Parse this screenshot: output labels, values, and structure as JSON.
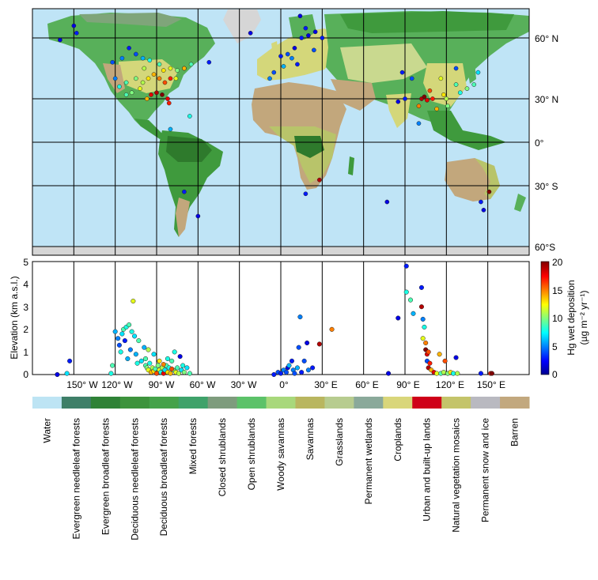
{
  "map": {
    "lat_labels": [
      "60° N",
      "30° N",
      "0°",
      "30° S",
      "60°S"
    ],
    "lon_labels": [
      "150° W",
      "120° W",
      "90° W",
      "60° W",
      "30° W",
      "0°",
      "30° E",
      "60° E",
      "90° E",
      "120° E",
      "150° E"
    ],
    "colors": {
      "ocean": "#bfe4f6",
      "forest_dark": "#2e7a2c",
      "forest": "#3f9a3d",
      "mixed": "#58b05a",
      "shrub": "#7fa57a",
      "savanna": "#b8c46a",
      "grass": "#c9d98f",
      "crop": "#d4d77a",
      "barren": "#c2a77c",
      "snow": "#d6d6d6",
      "urban": "#d4000f"
    }
  },
  "chart_data": {
    "type": "scatter",
    "xlabel": "",
    "ylabel": "Elevation (km a.s.l.)",
    "x_ticks": [
      "150° W",
      "120° W",
      "90° W",
      "60° W",
      "30° W",
      "0°",
      "30° E",
      "60° E",
      "90° E",
      "120° E",
      "150° E"
    ],
    "y_ticks": [
      "0",
      "1",
      "2",
      "3",
      "4",
      "5"
    ],
    "ylim": [
      0,
      5
    ],
    "xlim": [
      -180,
      180
    ],
    "colorbar": {
      "label": "Hg wet deposition",
      "units": "(µg m⁻² yr⁻¹)",
      "ticks": [
        "0",
        "5",
        "10",
        "15",
        "20"
      ],
      "range": [
        0,
        20
      ]
    },
    "points": [
      {
        "lon": -162,
        "elev": 0.0,
        "hg": 2
      },
      {
        "lon": -153,
        "elev": 0.6,
        "hg": 3
      },
      {
        "lon": -155,
        "elev": 0.05,
        "hg": 7
      },
      {
        "lon": -123,
        "elev": 0.05,
        "hg": 8
      },
      {
        "lon": -122,
        "elev": 0.4,
        "hg": 9
      },
      {
        "lon": -120,
        "elev": 1.9,
        "hg": 6
      },
      {
        "lon": -118,
        "elev": 1.6,
        "hg": 5
      },
      {
        "lon": -117,
        "elev": 1.3,
        "hg": 4
      },
      {
        "lon": -116,
        "elev": 1.0,
        "hg": 8
      },
      {
        "lon": -115,
        "elev": 1.8,
        "hg": 7
      },
      {
        "lon": -114,
        "elev": 2.0,
        "hg": 9
      },
      {
        "lon": -113,
        "elev": 1.5,
        "hg": 3
      },
      {
        "lon": -112,
        "elev": 2.1,
        "hg": 8
      },
      {
        "lon": -111,
        "elev": 0.7,
        "hg": 6
      },
      {
        "lon": -110,
        "elev": 2.2,
        "hg": 9
      },
      {
        "lon": -109,
        "elev": 1.1,
        "hg": 5
      },
      {
        "lon": -108,
        "elev": 1.9,
        "hg": 8
      },
      {
        "lon": -107,
        "elev": 3.25,
        "hg": 12
      },
      {
        "lon": -106,
        "elev": 1.7,
        "hg": 7
      },
      {
        "lon": -105,
        "elev": 0.9,
        "hg": 6
      },
      {
        "lon": -104,
        "elev": 0.5,
        "hg": 8
      },
      {
        "lon": -103,
        "elev": 1.5,
        "hg": 9
      },
      {
        "lon": -101,
        "elev": 0.6,
        "hg": 7
      },
      {
        "lon": -99,
        "elev": 1.2,
        "hg": 6
      },
      {
        "lon": -98,
        "elev": 0.4,
        "hg": 9
      },
      {
        "lon": -97,
        "elev": 0.3,
        "hg": 10
      },
      {
        "lon": -96,
        "elev": 0.2,
        "hg": 12
      },
      {
        "lon": -95,
        "elev": 0.5,
        "hg": 8
      },
      {
        "lon": -94,
        "elev": 0.1,
        "hg": 14
      },
      {
        "lon": -93,
        "elev": 0.3,
        "hg": 11
      },
      {
        "lon": -92,
        "elev": 0.15,
        "hg": 13
      },
      {
        "lon": -91,
        "elev": 0.25,
        "hg": 9
      },
      {
        "lon": -90,
        "elev": 0.05,
        "hg": 16
      },
      {
        "lon": -89,
        "elev": 0.4,
        "hg": 10
      },
      {
        "lon": -88,
        "elev": 0.2,
        "hg": 12
      },
      {
        "lon": -87,
        "elev": 0.1,
        "hg": 8
      },
      {
        "lon": -86,
        "elev": 0.3,
        "hg": 11
      },
      {
        "lon": -85,
        "elev": 0.05,
        "hg": 18
      },
      {
        "lon": -84,
        "elev": 0.2,
        "hg": 7
      },
      {
        "lon": -83,
        "elev": 0.4,
        "hg": 9
      },
      {
        "lon": -82,
        "elev": 0.1,
        "hg": 13
      },
      {
        "lon": -81,
        "elev": 0.3,
        "hg": 8
      },
      {
        "lon": -80,
        "elev": 0.05,
        "hg": 14
      },
      {
        "lon": -79,
        "elev": 0.6,
        "hg": 9
      },
      {
        "lon": -78,
        "elev": 0.2,
        "hg": 10
      },
      {
        "lon": -77,
        "elev": 1.0,
        "hg": 8
      },
      {
        "lon": -76,
        "elev": 0.1,
        "hg": 12
      },
      {
        "lon": -75,
        "elev": 0.3,
        "hg": 9
      },
      {
        "lon": -74,
        "elev": 0.05,
        "hg": 11
      },
      {
        "lon": -73,
        "elev": 0.8,
        "hg": 2
      },
      {
        "lon": -72,
        "elev": 0.2,
        "hg": 7
      },
      {
        "lon": -71,
        "elev": 0.4,
        "hg": 8
      },
      {
        "lon": -70,
        "elev": 0.1,
        "hg": 10
      },
      {
        "lon": -68,
        "elev": 0.3,
        "hg": 7
      },
      {
        "lon": -66,
        "elev": 0.05,
        "hg": 9
      },
      {
        "lon": -98,
        "elev": 0.7,
        "hg": 9
      },
      {
        "lon": -96,
        "elev": 1.1,
        "hg": 11
      },
      {
        "lon": -92,
        "elev": 0.9,
        "hg": 7
      },
      {
        "lon": -88,
        "elev": 0.6,
        "hg": 13
      },
      {
        "lon": -85,
        "elev": 0.45,
        "hg": 15
      },
      {
        "lon": -82,
        "elev": 0.7,
        "hg": 8
      },
      {
        "lon": -79,
        "elev": 0.25,
        "hg": 16
      },
      {
        "lon": -5,
        "elev": 0.0,
        "hg": 3
      },
      {
        "lon": -2,
        "elev": 0.1,
        "hg": 4
      },
      {
        "lon": 0,
        "elev": 0.05,
        "hg": 3
      },
      {
        "lon": 2,
        "elev": 0.2,
        "hg": 5
      },
      {
        "lon": 4,
        "elev": 0.1,
        "hg": 4
      },
      {
        "lon": 5,
        "elev": 0.3,
        "hg": 2
      },
      {
        "lon": 6,
        "elev": 0.4,
        "hg": 6
      },
      {
        "lon": 8,
        "elev": 0.6,
        "hg": 3
      },
      {
        "lon": 9,
        "elev": 0.2,
        "hg": 5
      },
      {
        "lon": 10,
        "elev": 0.05,
        "hg": 4
      },
      {
        "lon": 12,
        "elev": 0.3,
        "hg": 6
      },
      {
        "lon": 13,
        "elev": 1.2,
        "hg": 4
      },
      {
        "lon": 14,
        "elev": 2.55,
        "hg": 5
      },
      {
        "lon": 15,
        "elev": 0.1,
        "hg": 3
      },
      {
        "lon": 17,
        "elev": 0.6,
        "hg": 4
      },
      {
        "lon": 19,
        "elev": 1.4,
        "hg": 2
      },
      {
        "lon": 20,
        "elev": 0.2,
        "hg": 5
      },
      {
        "lon": 23,
        "elev": 0.3,
        "hg": 3
      },
      {
        "lon": 28,
        "elev": 1.35,
        "hg": 19
      },
      {
        "lon": 37,
        "elev": 2.0,
        "hg": 15
      },
      {
        "lon": 78,
        "elev": 0.05,
        "hg": 2
      },
      {
        "lon": 85,
        "elev": 2.5,
        "hg": 2
      },
      {
        "lon": 91,
        "elev": 4.8,
        "hg": 3
      },
      {
        "lon": 91,
        "elev": 3.65,
        "hg": 8
      },
      {
        "lon": 94,
        "elev": 3.3,
        "hg": 9
      },
      {
        "lon": 96,
        "elev": 2.7,
        "hg": 6
      },
      {
        "lon": 102,
        "elev": 3.85,
        "hg": 3
      },
      {
        "lon": 102,
        "elev": 3.0,
        "hg": 19
      },
      {
        "lon": 103,
        "elev": 2.45,
        "hg": 5
      },
      {
        "lon": 103,
        "elev": 1.6,
        "hg": 12
      },
      {
        "lon": 104,
        "elev": 2.1,
        "hg": 8
      },
      {
        "lon": 105,
        "elev": 1.4,
        "hg": 15
      },
      {
        "lon": 105,
        "elev": 1.1,
        "hg": 20
      },
      {
        "lon": 106,
        "elev": 0.9,
        "hg": 18
      },
      {
        "lon": 106,
        "elev": 0.6,
        "hg": 4
      },
      {
        "lon": 107,
        "elev": 1.0,
        "hg": 16
      },
      {
        "lon": 107,
        "elev": 0.3,
        "hg": 19
      },
      {
        "lon": 108,
        "elev": 0.5,
        "hg": 17
      },
      {
        "lon": 109,
        "elev": 0.2,
        "hg": 14
      },
      {
        "lon": 111,
        "elev": 0.1,
        "hg": 18
      },
      {
        "lon": 113,
        "elev": 0.05,
        "hg": 12
      },
      {
        "lon": 115,
        "elev": 0.9,
        "hg": 14
      },
      {
        "lon": 116,
        "elev": 0.05,
        "hg": 9
      },
      {
        "lon": 118,
        "elev": 0.1,
        "hg": 11
      },
      {
        "lon": 119,
        "elev": 0.6,
        "hg": 16
      },
      {
        "lon": 121,
        "elev": 0.05,
        "hg": 10
      },
      {
        "lon": 123,
        "elev": 0.1,
        "hg": 13
      },
      {
        "lon": 125,
        "elev": 0.05,
        "hg": 8
      },
      {
        "lon": 127,
        "elev": 0.75,
        "hg": 2
      },
      {
        "lon": 128,
        "elev": 0.05,
        "hg": 11
      },
      {
        "lon": 145,
        "elev": 0.05,
        "hg": 3
      },
      {
        "lon": 152,
        "elev": 0.05,
        "hg": 17
      },
      {
        "lon": 153,
        "elev": 0.05,
        "hg": 20
      }
    ],
    "map_stations": [
      {
        "lon": -160,
        "lat": 59,
        "hg": 2
      },
      {
        "lon": -148,
        "lat": 64,
        "hg": 3
      },
      {
        "lon": -150,
        "lat": 70,
        "hg": 2
      },
      {
        "lon": -122,
        "lat": 48,
        "hg": 4
      },
      {
        "lon": -115,
        "lat": 50,
        "hg": 5
      },
      {
        "lon": -110,
        "lat": 55,
        "hg": 3
      },
      {
        "lon": -105,
        "lat": 52,
        "hg": 4
      },
      {
        "lon": -100,
        "lat": 50,
        "hg": 6
      },
      {
        "lon": -95,
        "lat": 49,
        "hg": 8
      },
      {
        "lon": -88,
        "lat": 47,
        "hg": 9
      },
      {
        "lon": -80,
        "lat": 45,
        "hg": 12
      },
      {
        "lon": -75,
        "lat": 44,
        "hg": 10
      },
      {
        "lon": -70,
        "lat": 45,
        "hg": 7
      },
      {
        "lon": -120,
        "lat": 40,
        "hg": 5
      },
      {
        "lon": -117,
        "lat": 36,
        "hg": 8
      },
      {
        "lon": -112,
        "lat": 38,
        "hg": 9
      },
      {
        "lon": -105,
        "lat": 40,
        "hg": 10
      },
      {
        "lon": -100,
        "lat": 38,
        "hg": 11
      },
      {
        "lon": -96,
        "lat": 40,
        "hg": 13
      },
      {
        "lon": -92,
        "lat": 42,
        "hg": 14
      },
      {
        "lon": -88,
        "lat": 40,
        "hg": 15
      },
      {
        "lon": -84,
        "lat": 38,
        "hg": 16
      },
      {
        "lon": -80,
        "lat": 40,
        "hg": 17
      },
      {
        "lon": -76,
        "lat": 40,
        "hg": 12
      },
      {
        "lon": -94,
        "lat": 32,
        "hg": 18
      },
      {
        "lon": -90,
        "lat": 33,
        "hg": 19
      },
      {
        "lon": -86,
        "lat": 32,
        "hg": 20
      },
      {
        "lon": -82,
        "lat": 30,
        "hg": 18
      },
      {
        "lon": -81,
        "lat": 27,
        "hg": 17
      },
      {
        "lon": -97,
        "lat": 30,
        "hg": 14
      },
      {
        "lon": -108,
        "lat": 33,
        "hg": 10
      },
      {
        "lon": -112,
        "lat": 32,
        "hg": 9
      },
      {
        "lon": -99,
        "lat": 45,
        "hg": 11
      },
      {
        "lon": -102,
        "lat": 35,
        "hg": 12
      },
      {
        "lon": -85,
        "lat": 44,
        "hg": 13
      },
      {
        "lon": -66,
        "lat": 18,
        "hg": 8
      },
      {
        "lon": -80,
        "lat": 9,
        "hg": 6
      },
      {
        "lon": -70,
        "lat": 45,
        "hg": 14
      },
      {
        "lon": -65,
        "lat": 47,
        "hg": 9
      },
      {
        "lon": -52,
        "lat": 48,
        "hg": 3
      },
      {
        "lon": -60,
        "lat": -45,
        "hg": 2
      },
      {
        "lon": -70,
        "lat": -33,
        "hg": 3
      },
      {
        "lon": -22,
        "lat": 64,
        "hg": 2
      },
      {
        "lon": 0,
        "lat": 51,
        "hg": 3
      },
      {
        "lon": 5,
        "lat": 52,
        "hg": 4
      },
      {
        "lon": 8,
        "lat": 50,
        "hg": 5
      },
      {
        "lon": 10,
        "lat": 55,
        "hg": 2
      },
      {
        "lon": 12,
        "lat": 47,
        "hg": 3
      },
      {
        "lon": 15,
        "lat": 60,
        "hg": 3
      },
      {
        "lon": 20,
        "lat": 62,
        "hg": 2
      },
      {
        "lon": 25,
        "lat": 65,
        "hg": 2
      },
      {
        "lon": 18,
        "lat": 68,
        "hg": 3
      },
      {
        "lon": 14,
        "lat": 78,
        "hg": 2
      },
      {
        "lon": -5,
        "lat": 43,
        "hg": 4
      },
      {
        "lon": -8,
        "lat": 40,
        "hg": 5
      },
      {
        "lon": 2,
        "lat": 46,
        "hg": 6
      },
      {
        "lon": 24,
        "lat": 54,
        "hg": 4
      },
      {
        "lon": 30,
        "lat": 60,
        "hg": 3
      },
      {
        "lon": 28,
        "lat": -26,
        "hg": 19
      },
      {
        "lon": 18,
        "lat": -34,
        "hg": 3
      },
      {
        "lon": 77,
        "lat": -38,
        "hg": 2
      },
      {
        "lon": 85,
        "lat": 28,
        "hg": 2
      },
      {
        "lon": 90,
        "lat": 30,
        "hg": 3
      },
      {
        "lon": 100,
        "lat": 25,
        "hg": 15
      },
      {
        "lon": 102,
        "lat": 30,
        "hg": 19
      },
      {
        "lon": 104,
        "lat": 31,
        "hg": 20
      },
      {
        "lon": 106,
        "lat": 29,
        "hg": 18
      },
      {
        "lon": 108,
        "lat": 34,
        "hg": 16
      },
      {
        "lon": 110,
        "lat": 30,
        "hg": 17
      },
      {
        "lon": 113,
        "lat": 23,
        "hg": 14
      },
      {
        "lon": 116,
        "lat": 40,
        "hg": 12
      },
      {
        "lon": 118,
        "lat": 32,
        "hg": 13
      },
      {
        "lon": 120,
        "lat": 30,
        "hg": 11
      },
      {
        "lon": 121,
        "lat": 25,
        "hg": 10
      },
      {
        "lon": 127,
        "lat": 37,
        "hg": 9
      },
      {
        "lon": 130,
        "lat": 33,
        "hg": 8
      },
      {
        "lon": 135,
        "lat": 35,
        "hg": 10
      },
      {
        "lon": 140,
        "lat": 37,
        "hg": 9
      },
      {
        "lon": 143,
        "lat": 43,
        "hg": 7
      },
      {
        "lon": 100,
        "lat": 13,
        "hg": 5
      },
      {
        "lon": 95,
        "lat": 40,
        "hg": 4
      },
      {
        "lon": 88,
        "lat": 43,
        "hg": 3
      },
      {
        "lon": 127,
        "lat": 45,
        "hg": 4
      },
      {
        "lon": 151,
        "lat": -33,
        "hg": 20
      },
      {
        "lon": 145,
        "lat": -38,
        "hg": 3
      },
      {
        "lon": 147,
        "lat": -42,
        "hg": 2
      }
    ]
  },
  "legend": {
    "items": [
      {
        "label": "Water",
        "color": "#bde4f4"
      },
      {
        "label": "Evergreen needleleaf forests",
        "color": "#3e7f68"
      },
      {
        "label": "Evergreen broadleaf forests",
        "color": "#2f8236"
      },
      {
        "label": "Deciduous needleleaf forests",
        "color": "#3d933c"
      },
      {
        "label": "Deciduous broadleaf forests",
        "color": "#45a24a"
      },
      {
        "label": "Mixed forests",
        "color": "#3fa26a"
      },
      {
        "label": "Closed shrublands",
        "color": "#7e9c7d"
      },
      {
        "label": "Open shrublands",
        "color": "#5cc269"
      },
      {
        "label": "Woody savannas",
        "color": "#a8d87b"
      },
      {
        "label": "Savannas",
        "color": "#b9b65f"
      },
      {
        "label": "Grasslands",
        "color": "#b7cc8f"
      },
      {
        "label": "Permanent wetlands",
        "color": "#8aa99a"
      },
      {
        "label": "Croplands",
        "color": "#d9d67a"
      },
      {
        "label": "Urban and built-up lands",
        "color": "#cf0018"
      },
      {
        "label": "Natural vegetation mosaics",
        "color": "#c4c46a"
      },
      {
        "label": "Permanent snow and ice",
        "color": "#b9b9c0"
      },
      {
        "label": "Barren",
        "color": "#c2a87e"
      }
    ]
  }
}
